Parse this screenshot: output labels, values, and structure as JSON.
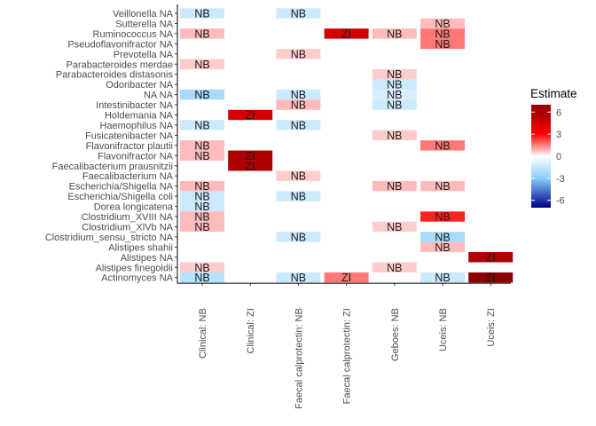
{
  "chart_data": {
    "type": "heatmap",
    "x_categories": [
      "Clinical: NB",
      "Clinical: ZI",
      "Faecal calprotectin: NB",
      "Faecal calprotectin: ZI",
      "Geboes: NB",
      "Uceis: NB",
      "Uceis: ZI"
    ],
    "y_categories": [
      "Veillonella NA",
      "Sutterella NA",
      "Ruminococcus NA",
      "Pseudoflavonifractor NA",
      "Prevotella NA",
      "Parabacteroides merdae",
      "Parabacteroides distasonis",
      "Odoribacter NA",
      "NA NA",
      "Intestinibacter NA",
      "Holdemania NA",
      "Haemophilus NA",
      "Fusicatenibacter NA",
      "Flavonifractor plautii",
      "Flavonifractor NA",
      "Faecalibacterium prausnitzii",
      "Faecalibacterium NA",
      "Escherichia/Shigella NA",
      "Escherichia/Shigella coli",
      "Dorea longicatena",
      "Clostridium_XVIII NA",
      "Clostridium_XlVb NA",
      "Clostridium_sensu_stricto NA",
      "Alistipes shahii",
      "Alistipes NA",
      "Alistipes finegoldii",
      "Actinomyces NA"
    ],
    "cells": [
      {
        "x": "Clinical: NB",
        "y": "Veillonella NA",
        "value": -1.3,
        "label": "NB"
      },
      {
        "x": "Faecal calprotectin: NB",
        "y": "Veillonella NA",
        "value": -1.3,
        "label": "NB"
      },
      {
        "x": "Uceis: NB",
        "y": "Sutterella NA",
        "value": 0.8,
        "label": "NB"
      },
      {
        "x": "Clinical: NB",
        "y": "Ruminococcus NA",
        "value": 0.8,
        "label": "NB"
      },
      {
        "x": "Faecal calprotectin: ZI",
        "y": "Ruminococcus NA",
        "value": 4.5,
        "label": "ZI"
      },
      {
        "x": "Geboes: NB",
        "y": "Ruminococcus NA",
        "value": 0.8,
        "label": "NB"
      },
      {
        "x": "Uceis: NB",
        "y": "Ruminococcus NA",
        "value": 1.6,
        "label": "NB"
      },
      {
        "x": "Uceis: NB",
        "y": "Pseudoflavonifractor NA",
        "value": 1.6,
        "label": "NB"
      },
      {
        "x": "Faecal calprotectin: NB",
        "y": "Prevotella NA",
        "value": 0.6,
        "label": "NB"
      },
      {
        "x": "Clinical: NB",
        "y": "Parabacteroides merdae",
        "value": 0.6,
        "label": "NB"
      },
      {
        "x": "Geboes: NB",
        "y": "Parabacteroides distasonis",
        "value": 0.6,
        "label": "NB"
      },
      {
        "x": "Geboes: NB",
        "y": "Odoribacter NA",
        "value": -1.3,
        "label": "NB"
      },
      {
        "x": "Clinical: NB",
        "y": "NA NA",
        "value": -2.2,
        "label": "NB"
      },
      {
        "x": "Faecal calprotectin: NB",
        "y": "NA NA",
        "value": -1.3,
        "label": "NB"
      },
      {
        "x": "Geboes: NB",
        "y": "NA NA",
        "value": -1.0,
        "label": "NB"
      },
      {
        "x": "Faecal calprotectin: NB",
        "y": "Intestinibacter NA",
        "value": 0.8,
        "label": "NB"
      },
      {
        "x": "Geboes: NB",
        "y": "Intestinibacter NA",
        "value": -1.3,
        "label": "NB"
      },
      {
        "x": "Clinical: ZI",
        "y": "Holdemania NA",
        "value": 4.5,
        "label": "ZI"
      },
      {
        "x": "Clinical: NB",
        "y": "Haemophilus NA",
        "value": -1.3,
        "label": "NB"
      },
      {
        "x": "Faecal calprotectin: NB",
        "y": "Haemophilus NA",
        "value": -1.3,
        "label": "NB"
      },
      {
        "x": "Geboes: NB",
        "y": "Fusicatenibacter NA",
        "value": 0.6,
        "label": "NB"
      },
      {
        "x": "Clinical: NB",
        "y": "Flavonifractor plautii",
        "value": 0.8,
        "label": "NB"
      },
      {
        "x": "Uceis: NB",
        "y": "Flavonifractor plautii",
        "value": 1.6,
        "label": "NB"
      },
      {
        "x": "Clinical: NB",
        "y": "Flavonifractor NA",
        "value": 0.8,
        "label": "NB"
      },
      {
        "x": "Clinical: ZI",
        "y": "Flavonifractor NA",
        "value": 5.8,
        "label": "ZI"
      },
      {
        "x": "Clinical: ZI",
        "y": "Faecalibacterium prausnitzii",
        "value": 5.8,
        "label": "ZI"
      },
      {
        "x": "Faecal calprotectin: NB",
        "y": "Faecalibacterium NA",
        "value": 0.6,
        "label": "NB"
      },
      {
        "x": "Clinical: NB",
        "y": "Escherichia/Shigella NA",
        "value": 0.8,
        "label": "NB"
      },
      {
        "x": "Geboes: NB",
        "y": "Escherichia/Shigella NA",
        "value": 0.8,
        "label": "NB"
      },
      {
        "x": "Uceis: NB",
        "y": "Escherichia/Shigella NA",
        "value": 0.8,
        "label": "NB"
      },
      {
        "x": "Clinical: NB",
        "y": "Escherichia/Shigella coli",
        "value": -1.3,
        "label": "NB"
      },
      {
        "x": "Faecal calprotectin: NB",
        "y": "Escherichia/Shigella coli",
        "value": -1.3,
        "label": "NB"
      },
      {
        "x": "Clinical: NB",
        "y": "Dorea longicatena",
        "value": -1.3,
        "label": "NB"
      },
      {
        "x": "Clinical: NB",
        "y": "Clostridium_XVIII NA",
        "value": 0.8,
        "label": "NB"
      },
      {
        "x": "Uceis: NB",
        "y": "Clostridium_XVIII NA",
        "value": 2.6,
        "label": "NB"
      },
      {
        "x": "Clinical: NB",
        "y": "Clostridium_XlVb NA",
        "value": 0.8,
        "label": "NB"
      },
      {
        "x": "Geboes: NB",
        "y": "Clostridium_XlVb NA",
        "value": 0.6,
        "label": "NB"
      },
      {
        "x": "Faecal calprotectin: NB",
        "y": "Clostridium_sensu_stricto NA",
        "value": -1.3,
        "label": "NB"
      },
      {
        "x": "Uceis: NB",
        "y": "Clostridium_sensu_stricto NA",
        "value": -2.2,
        "label": "NB"
      },
      {
        "x": "Uceis: NB",
        "y": "Alistipes shahii",
        "value": 0.8,
        "label": "NB"
      },
      {
        "x": "Uceis: ZI",
        "y": "Alistipes NA",
        "value": 5.8,
        "label": "ZI"
      },
      {
        "x": "Clinical: NB",
        "y": "Alistipes finegoldii",
        "value": 0.6,
        "label": "NB"
      },
      {
        "x": "Geboes: NB",
        "y": "Alistipes finegoldii",
        "value": 0.6,
        "label": "NB"
      },
      {
        "x": "Clinical: NB",
        "y": "Actinomyces NA",
        "value": -1.8,
        "label": "NB"
      },
      {
        "x": "Faecal calprotectin: NB",
        "y": "Actinomyces NA",
        "value": -1.3,
        "label": "NB"
      },
      {
        "x": "Faecal calprotectin: ZI",
        "y": "Actinomyces NA",
        "value": 1.6,
        "label": "ZI"
      },
      {
        "x": "Uceis: NB",
        "y": "Actinomyces NA",
        "value": -1.3,
        "label": "NB"
      },
      {
        "x": "Uceis: ZI",
        "y": "Actinomyces NA",
        "value": 7.0,
        "label": "ZI"
      }
    ],
    "legend": {
      "title": "Estimate",
      "ticks": [
        6,
        3,
        0,
        -3,
        -6
      ],
      "range": [
        -7,
        7
      ],
      "colors": {
        "low": "#00008b",
        "mid_low": "#87cefa",
        "mid": "#ffffff",
        "mid_high": "#ff0000",
        "high": "#8b0000"
      }
    }
  }
}
